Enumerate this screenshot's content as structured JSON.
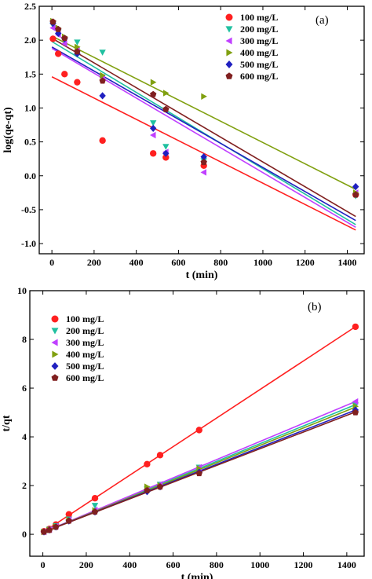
{
  "chart_data": [
    {
      "type": "scatter",
      "panel_label": "(a)",
      "xlabel": "t (min)",
      "ylabel": "log(qe-qt)",
      "xlim": [
        -60,
        1480
      ],
      "ylim": [
        -1.15,
        2.5
      ],
      "xticks": [
        0,
        200,
        400,
        600,
        800,
        1000,
        1200,
        1400
      ],
      "yticks": [
        -1.0,
        -0.5,
        0.0,
        0.5,
        1.0,
        1.5,
        2.0,
        2.5
      ],
      "ytick_labels": [
        "-1.0",
        "-0.5",
        "0.0",
        "0.5",
        "1.0",
        "1.5",
        "2.0",
        "2.5"
      ],
      "grid": false,
      "legend_position": "top-right",
      "series": [
        {
          "name": "100 mg/L",
          "marker": "circle",
          "color": "#ff2020",
          "x": [
            5,
            30,
            60,
            120,
            240,
            480,
            540,
            720,
            1440
          ],
          "y": [
            2.02,
            1.8,
            1.5,
            1.38,
            0.52,
            0.33,
            0.27,
            0.15,
            -0.28
          ],
          "fit": [
            1.46,
            -0.8
          ]
        },
        {
          "name": "200 mg/L",
          "marker": "triangle-down",
          "color": "#20c0a0",
          "x": [
            5,
            30,
            60,
            120,
            240,
            480,
            540,
            720,
            1440
          ],
          "y": [
            2.22,
            2.12,
            2.0,
            1.97,
            1.82,
            0.78,
            0.43,
            0.22,
            -0.3
          ],
          "fit": [
            1.98,
            -0.72
          ]
        },
        {
          "name": "300 mg/L",
          "marker": "triangle-left",
          "color": "#c040ff",
          "x": [
            5,
            30,
            60,
            120,
            240,
            480,
            540,
            720,
            1440
          ],
          "y": [
            2.18,
            2.08,
            1.95,
            1.85,
            1.45,
            0.6,
            0.35,
            0.05,
            -0.25
          ],
          "fit": [
            1.88,
            -0.76
          ]
        },
        {
          "name": "400 mg/L",
          "marker": "triangle-right",
          "color": "#80a010",
          "x": [
            5,
            30,
            60,
            120,
            240,
            480,
            540,
            720,
            1440
          ],
          "y": [
            2.28,
            2.18,
            2.05,
            1.9,
            1.48,
            1.38,
            1.22,
            1.17,
            -0.25
          ],
          "fit": [
            2.06,
            -0.2
          ]
        },
        {
          "name": "500 mg/L",
          "marker": "diamond",
          "color": "#2020c0",
          "x": [
            5,
            30,
            60,
            120,
            240,
            480,
            540,
            720,
            1440
          ],
          "y": [
            2.25,
            2.1,
            2.02,
            1.8,
            1.18,
            0.7,
            0.33,
            0.28,
            -0.16
          ],
          "fit": [
            1.9,
            -0.66
          ]
        },
        {
          "name": "600 mg/L",
          "marker": "pentagon",
          "color": "#802020",
          "x": [
            5,
            30,
            60,
            120,
            240,
            480,
            540,
            720,
            1440
          ],
          "y": [
            2.27,
            2.16,
            2.03,
            1.83,
            1.4,
            1.2,
            0.98,
            0.2,
            -0.28
          ],
          "fit": [
            2.03,
            -0.6
          ]
        }
      ]
    },
    {
      "type": "scatter",
      "panel_label": "(b)",
      "xlabel": "t (min)",
      "ylabel": "t/qt",
      "xlim": [
        -60,
        1480
      ],
      "ylim": [
        -0.9,
        10
      ],
      "xticks": [
        0,
        200,
        400,
        600,
        800,
        1000,
        1200,
        1400
      ],
      "yticks": [
        0,
        2,
        4,
        6,
        8,
        10
      ],
      "ytick_labels": [
        "0",
        "2",
        "4",
        "6",
        "8",
        "10"
      ],
      "grid": false,
      "legend_position": "top-left",
      "series": [
        {
          "name": "100 mg/L",
          "marker": "circle",
          "color": "#ff2020",
          "x": [
            5,
            30,
            60,
            120,
            240,
            480,
            540,
            720,
            1440
          ],
          "y": [
            0.12,
            0.22,
            0.4,
            0.82,
            1.48,
            2.88,
            3.25,
            4.28,
            8.52
          ],
          "fit": [
            0.08,
            8.52
          ]
        },
        {
          "name": "200 mg/L",
          "marker": "triangle-down",
          "color": "#20c0a0",
          "x": [
            5,
            30,
            60,
            120,
            240,
            480,
            540,
            720,
            1440
          ],
          "y": [
            0.1,
            0.2,
            0.35,
            0.62,
            1.18,
            1.85,
            2.05,
            2.75,
            5.3
          ],
          "fit": [
            0.08,
            5.32
          ]
        },
        {
          "name": "300 mg/L",
          "marker": "triangle-left",
          "color": "#c040ff",
          "x": [
            5,
            30,
            60,
            120,
            240,
            480,
            540,
            720,
            1440
          ],
          "y": [
            0.1,
            0.19,
            0.33,
            0.6,
            1.0,
            1.85,
            2.05,
            2.75,
            5.45
          ],
          "fit": [
            0.08,
            5.45
          ]
        },
        {
          "name": "400 mg/L",
          "marker": "triangle-right",
          "color": "#80a010",
          "x": [
            5,
            30,
            60,
            120,
            240,
            480,
            540,
            720,
            1440
          ],
          "y": [
            0.1,
            0.18,
            0.32,
            0.58,
            0.98,
            1.95,
            2.0,
            2.7,
            5.25
          ],
          "fit": [
            0.08,
            5.22
          ]
        },
        {
          "name": "500 mg/L",
          "marker": "diamond",
          "color": "#2020c0",
          "x": [
            5,
            30,
            60,
            120,
            240,
            480,
            540,
            720,
            1440
          ],
          "y": [
            0.1,
            0.18,
            0.3,
            0.55,
            0.92,
            1.75,
            1.95,
            2.55,
            5.1
          ],
          "fit": [
            0.08,
            5.1
          ]
        },
        {
          "name": "600 mg/L",
          "marker": "pentagon",
          "color": "#802020",
          "x": [
            5,
            30,
            60,
            120,
            240,
            480,
            540,
            720,
            1440
          ],
          "y": [
            0.1,
            0.17,
            0.3,
            0.55,
            0.92,
            1.8,
            1.95,
            2.5,
            5.0
          ],
          "fit": [
            0.08,
            5.02
          ]
        }
      ]
    }
  ]
}
